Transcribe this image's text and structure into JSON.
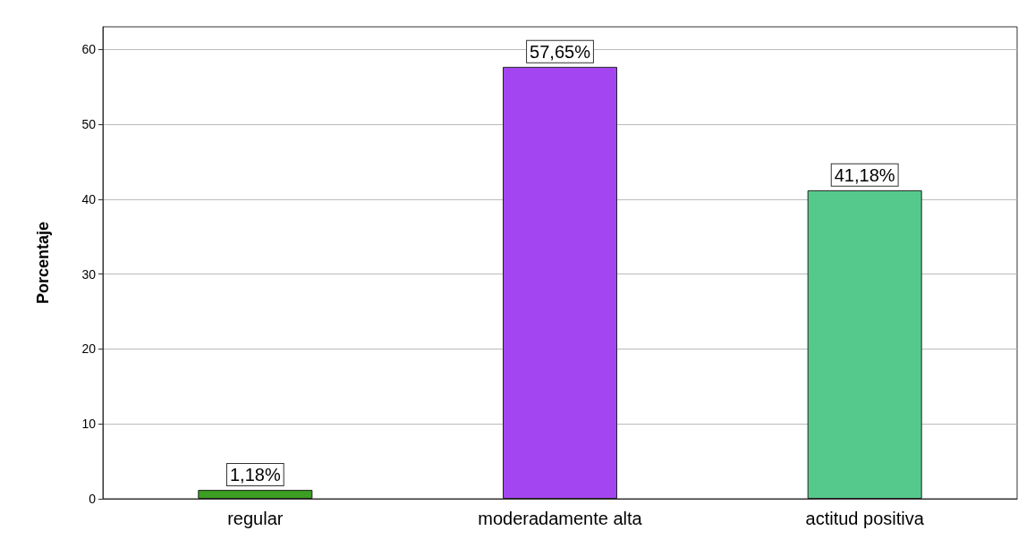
{
  "chart_data": {
    "type": "bar",
    "ylabel": "Porcentaje",
    "categories": [
      "regular",
      "moderadamente alta",
      "actitud positiva"
    ],
    "values": [
      1.18,
      57.65,
      41.18
    ],
    "colors": [
      "#3c9e22",
      "#a445f2",
      "#55c98b"
    ],
    "value_labels": [
      "1,18%",
      "57,65%",
      "41,18%"
    ],
    "ylim": [
      0,
      63
    ],
    "yticks": [
      0,
      10,
      20,
      30,
      40,
      50,
      60
    ],
    "grid": "y"
  }
}
